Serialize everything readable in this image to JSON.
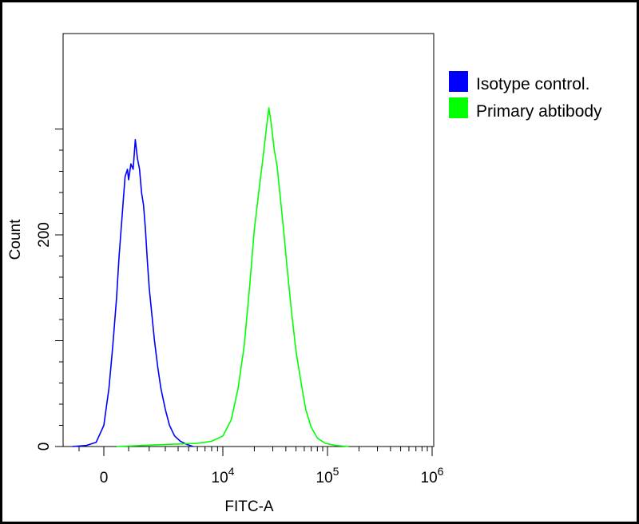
{
  "chart_data": {
    "type": "histogram",
    "title": "",
    "xlabel": "FITC-A",
    "ylabel": "Count",
    "x_scale": "biexponential",
    "ylim": [
      0,
      320
    ],
    "grid": false,
    "legend_position": "top-right",
    "x_ticks": [
      {
        "value": 0,
        "base": "0",
        "exp": ""
      },
      {
        "value": 10000,
        "base": "10",
        "exp": "4"
      },
      {
        "value": 100000,
        "base": "10",
        "exp": "5"
      },
      {
        "value": 1000000,
        "base": "10",
        "exp": "6"
      }
    ],
    "y_ticks": [
      {
        "value": 0,
        "label": "0"
      },
      {
        "value": 200,
        "label": "200"
      }
    ],
    "series": [
      {
        "name": "Isotype control.",
        "color": "#0000ff",
        "points": [
          [
            -1300,
            0
          ],
          [
            -700,
            1
          ],
          [
            -300,
            4
          ],
          [
            0,
            20
          ],
          [
            200,
            55
          ],
          [
            350,
            95
          ],
          [
            500,
            140
          ],
          [
            600,
            180
          ],
          [
            750,
            225
          ],
          [
            850,
            255
          ],
          [
            950,
            262
          ],
          [
            1000,
            252
          ],
          [
            1100,
            267
          ],
          [
            1200,
            262
          ],
          [
            1300,
            290
          ],
          [
            1400,
            272
          ],
          [
            1500,
            262
          ],
          [
            1600,
            240
          ],
          [
            1700,
            228
          ],
          [
            1800,
            205
          ],
          [
            1900,
            175
          ],
          [
            2000,
            150
          ],
          [
            2150,
            125
          ],
          [
            2300,
            100
          ],
          [
            2500,
            75
          ],
          [
            2700,
            55
          ],
          [
            3000,
            35
          ],
          [
            3300,
            20
          ],
          [
            3700,
            10
          ],
          [
            4200,
            5
          ],
          [
            4800,
            2
          ],
          [
            5500,
            0
          ]
        ]
      },
      {
        "name": "Primary abtibody",
        "color": "#00ff00",
        "points": [
          [
            500,
            0
          ],
          [
            3000,
            2
          ],
          [
            6000,
            3
          ],
          [
            8000,
            5
          ],
          [
            10000,
            10
          ],
          [
            12000,
            25
          ],
          [
            14000,
            55
          ],
          [
            16000,
            95
          ],
          [
            18000,
            150
          ],
          [
            20000,
            205
          ],
          [
            22000,
            240
          ],
          [
            24000,
            270
          ],
          [
            26000,
            300
          ],
          [
            27500,
            320
          ],
          [
            29000,
            305
          ],
          [
            31000,
            280
          ],
          [
            33000,
            265
          ],
          [
            35000,
            240
          ],
          [
            38000,
            205
          ],
          [
            41000,
            170
          ],
          [
            45000,
            130
          ],
          [
            50000,
            90
          ],
          [
            56000,
            60
          ],
          [
            62000,
            35
          ],
          [
            70000,
            18
          ],
          [
            80000,
            8
          ],
          [
            95000,
            3
          ],
          [
            120000,
            1
          ],
          [
            160000,
            0
          ]
        ]
      }
    ]
  }
}
